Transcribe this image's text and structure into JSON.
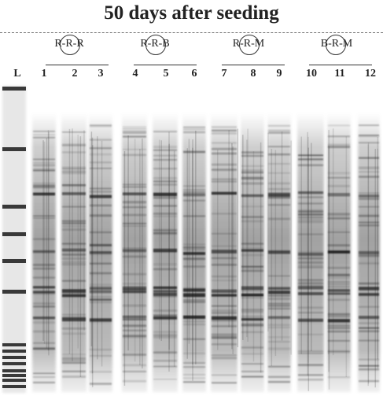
{
  "title": "50 days after seeding",
  "groups": [
    {
      "pre": "R-",
      "mid": "R",
      "post": "-R"
    },
    {
      "pre": "R-",
      "mid": "R",
      "post": "-B"
    },
    {
      "pre": "R-",
      "mid": "R",
      "post": "-M"
    },
    {
      "pre": "B-",
      "mid": "R",
      "post": "-M"
    }
  ],
  "lanes": [
    "L",
    "1",
    "2",
    "3",
    "4",
    "5",
    "6",
    "7",
    "8",
    "9",
    "10",
    "11",
    "12"
  ],
  "colors": {
    "background": "#ffffff",
    "text": "#222222",
    "band": "#1a1a1a"
  }
}
